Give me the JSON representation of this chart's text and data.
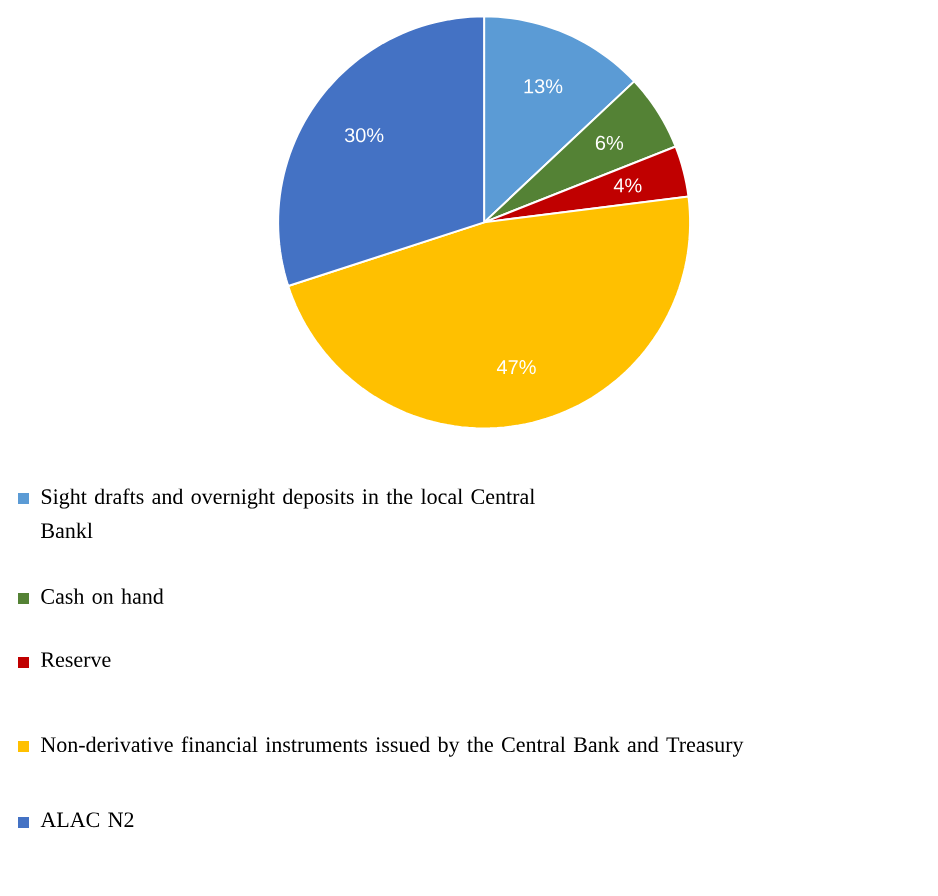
{
  "chart_data": {
    "type": "pie",
    "categories": [
      "Sight drafts and overnight deposits in the local Central Bankl",
      "Cash on hand",
      "Reserve",
      "Non-derivative financial instruments issued by the Central Bank and Treasury",
      "ALAC N2"
    ],
    "values": [
      13,
      6,
      4,
      47,
      30
    ],
    "value_labels": [
      "13%",
      "6%",
      "4%",
      "47%",
      "30%"
    ],
    "colors": [
      "#5b9bd5",
      "#548235",
      "#c00000",
      "#ffc000",
      "#4472c4"
    ],
    "legend": "bottom"
  }
}
